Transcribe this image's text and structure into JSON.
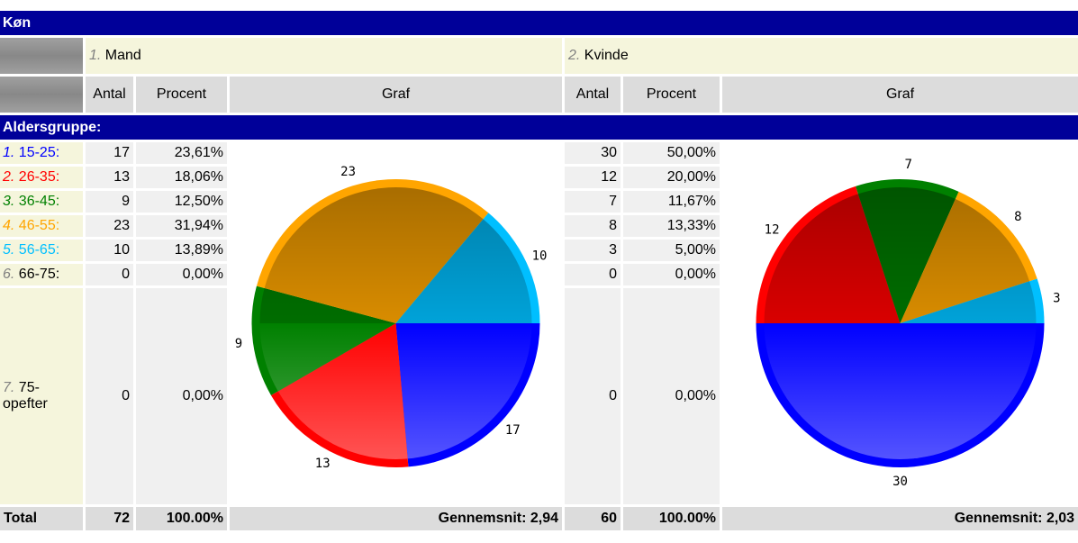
{
  "title": "Køn",
  "groups": [
    {
      "number": "1.",
      "name": "Mand",
      "counts": [
        17,
        13,
        9,
        23,
        10,
        0,
        0
      ],
      "percents": [
        "23,61%",
        "18,06%",
        "12,50%",
        "31,94%",
        "13,89%",
        "0,00%",
        "0,00%"
      ],
      "total": 72,
      "total_percent": "100.00%",
      "average": "Gennemsnit: 2,94"
    },
    {
      "number": "2.",
      "name": "Kvinde",
      "counts": [
        30,
        12,
        7,
        8,
        3,
        0,
        0
      ],
      "percents": [
        "50,00%",
        "20,00%",
        "11,67%",
        "13,33%",
        "5,00%",
        "0,00%",
        "0,00%"
      ],
      "total": 60,
      "total_percent": "100.00%",
      "average": "Gennemsnit: 2,03"
    }
  ],
  "column_headers": [
    "Antal",
    "Procent",
    "Graf"
  ],
  "section": "Aldersgruppe:",
  "rows": [
    {
      "number": "1.",
      "label": "15-25:",
      "color": "#0000ff"
    },
    {
      "number": "2.",
      "label": "26-35:",
      "color": "#ff0000"
    },
    {
      "number": "3.",
      "label": "36-45:",
      "color": "#008000"
    },
    {
      "number": "4.",
      "label": "46-55:",
      "color": "#ffa500"
    },
    {
      "number": "5.",
      "label": "56-65:",
      "color": "#00bfff"
    },
    {
      "number": "6.",
      "label": "66-75:"
    },
    {
      "number": "7.",
      "label": "75-opefter"
    }
  ],
  "total_label": "Total"
}
